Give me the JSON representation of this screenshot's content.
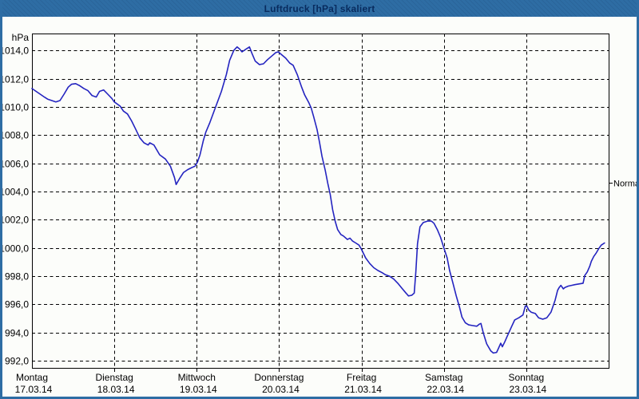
{
  "window": {
    "title": "Luftdruck [hPa] skaliert"
  },
  "colors": {
    "header_bg": "#2e6da4",
    "title_text": "#082b5e",
    "window_bg": "#fcfdfa",
    "grid": "#000000",
    "line": "#2424c0"
  },
  "chart_data": {
    "type": "line",
    "title": "Luftdruck [hPa] skaliert",
    "ylabel": "hPa",
    "xlabel": "",
    "grid": "dashed",
    "legend_position": "none",
    "y_min": 991.5,
    "y_max": 1015.2,
    "x_range_days": [
      0,
      7
    ],
    "y_ticks": [
      {
        "v": 1014,
        "label": "1014,0"
      },
      {
        "v": 1012,
        "label": "1012,0"
      },
      {
        "v": 1010,
        "label": "1010,0"
      },
      {
        "v": 1008,
        "label": "1008,0"
      },
      {
        "v": 1006,
        "label": "1006,0"
      },
      {
        "v": 1004,
        "label": "1004,0"
      },
      {
        "v": 1002,
        "label": "1002,0"
      },
      {
        "v": 1000,
        "label": "1000,0"
      },
      {
        "v": 998,
        "label": "998,0"
      },
      {
        "v": 996,
        "label": "996,0"
      },
      {
        "v": 994,
        "label": "994,0"
      },
      {
        "v": 992,
        "label": "992,0"
      }
    ],
    "x_days": [
      {
        "name": "Montag",
        "date": "17.03.14"
      },
      {
        "name": "Dienstag",
        "date": "18.03.14"
      },
      {
        "name": "Mittwoch",
        "date": "19.03.14"
      },
      {
        "name": "Donnerstag",
        "date": "20.03.14"
      },
      {
        "name": "Freitag",
        "date": "21.03.14"
      },
      {
        "name": "Samstag",
        "date": "22.03.14"
      },
      {
        "name": "Sonntag",
        "date": "23.03.14"
      }
    ],
    "normal_marker": {
      "label": "Normal",
      "value": 1004.6
    },
    "series": [
      {
        "name": "Luftdruck",
        "points": [
          [
            0.0,
            1011.3
          ],
          [
            0.05,
            1011.1
          ],
          [
            0.1,
            1010.9
          ],
          [
            0.15,
            1010.7
          ],
          [
            0.19,
            1010.55
          ],
          [
            0.24,
            1010.45
          ],
          [
            0.29,
            1010.35
          ],
          [
            0.34,
            1010.45
          ],
          [
            0.39,
            1010.9
          ],
          [
            0.44,
            1011.4
          ],
          [
            0.48,
            1011.6
          ],
          [
            0.53,
            1011.65
          ],
          [
            0.58,
            1011.5
          ],
          [
            0.63,
            1011.3
          ],
          [
            0.68,
            1011.15
          ],
          [
            0.73,
            1010.8
          ],
          [
            0.78,
            1010.7
          ],
          [
            0.82,
            1011.1
          ],
          [
            0.87,
            1011.2
          ],
          [
            0.92,
            1010.9
          ],
          [
            0.97,
            1010.6
          ],
          [
            1.0,
            1010.35
          ],
          [
            1.07,
            1010.05
          ],
          [
            1.11,
            1009.7
          ],
          [
            1.16,
            1009.5
          ],
          [
            1.21,
            1009.0
          ],
          [
            1.26,
            1008.4
          ],
          [
            1.31,
            1007.8
          ],
          [
            1.36,
            1007.45
          ],
          [
            1.41,
            1007.3
          ],
          [
            1.43,
            1007.45
          ],
          [
            1.48,
            1007.3
          ],
          [
            1.55,
            1006.6
          ],
          [
            1.62,
            1006.3
          ],
          [
            1.68,
            1005.8
          ],
          [
            1.73,
            1005.0
          ],
          [
            1.75,
            1004.5
          ],
          [
            1.79,
            1004.9
          ],
          [
            1.84,
            1005.35
          ],
          [
            1.89,
            1005.55
          ],
          [
            1.94,
            1005.7
          ],
          [
            1.98,
            1005.8
          ],
          [
            2.01,
            1006.1
          ],
          [
            2.04,
            1006.6
          ],
          [
            2.08,
            1007.6
          ],
          [
            2.11,
            1008.2
          ],
          [
            2.16,
            1008.9
          ],
          [
            2.23,
            1010.0
          ],
          [
            2.3,
            1011.1
          ],
          [
            2.36,
            1012.3
          ],
          [
            2.4,
            1013.3
          ],
          [
            2.45,
            1014.0
          ],
          [
            2.49,
            1014.25
          ],
          [
            2.52,
            1014.1
          ],
          [
            2.55,
            1013.9
          ],
          [
            2.6,
            1014.1
          ],
          [
            2.64,
            1014.25
          ],
          [
            2.67,
            1013.8
          ],
          [
            2.71,
            1013.25
          ],
          [
            2.76,
            1013.0
          ],
          [
            2.81,
            1013.05
          ],
          [
            2.86,
            1013.35
          ],
          [
            2.91,
            1013.6
          ],
          [
            2.96,
            1013.85
          ],
          [
            2.99,
            1013.9
          ],
          [
            3.03,
            1013.7
          ],
          [
            3.08,
            1013.45
          ],
          [
            3.13,
            1013.1
          ],
          [
            3.17,
            1012.95
          ],
          [
            3.22,
            1012.3
          ],
          [
            3.27,
            1011.45
          ],
          [
            3.31,
            1010.85
          ],
          [
            3.36,
            1010.3
          ],
          [
            3.39,
            1009.9
          ],
          [
            3.42,
            1009.3
          ],
          [
            3.46,
            1008.4
          ],
          [
            3.49,
            1007.5
          ],
          [
            3.52,
            1006.5
          ],
          [
            3.56,
            1005.5
          ],
          [
            3.59,
            1004.6
          ],
          [
            3.62,
            1003.8
          ],
          [
            3.65,
            1002.7
          ],
          [
            3.68,
            1001.9
          ],
          [
            3.71,
            1001.3
          ],
          [
            3.75,
            1000.95
          ],
          [
            3.78,
            1000.85
          ],
          [
            3.83,
            1000.6
          ],
          [
            3.86,
            1000.7
          ],
          [
            3.89,
            1000.5
          ],
          [
            3.93,
            1000.35
          ],
          [
            3.97,
            1000.2
          ],
          [
            4.0,
            999.9
          ],
          [
            4.05,
            999.3
          ],
          [
            4.1,
            998.9
          ],
          [
            4.15,
            998.6
          ],
          [
            4.2,
            998.4
          ],
          [
            4.25,
            998.25
          ],
          [
            4.29,
            998.1
          ],
          [
            4.34,
            998.0
          ],
          [
            4.39,
            997.8
          ],
          [
            4.44,
            997.5
          ],
          [
            4.49,
            997.15
          ],
          [
            4.54,
            996.8
          ],
          [
            4.57,
            996.6
          ],
          [
            4.61,
            996.65
          ],
          [
            4.64,
            996.8
          ],
          [
            4.66,
            998.3
          ],
          [
            4.68,
            1000.3
          ],
          [
            4.71,
            1001.5
          ],
          [
            4.75,
            1001.8
          ],
          [
            4.8,
            1001.9
          ],
          [
            4.85,
            1001.9
          ],
          [
            4.88,
            1001.75
          ],
          [
            4.92,
            1001.3
          ],
          [
            4.96,
            1000.75
          ],
          [
            5.0,
            1000.0
          ],
          [
            5.04,
            999.3
          ],
          [
            5.07,
            998.4
          ],
          [
            5.11,
            997.5
          ],
          [
            5.15,
            996.6
          ],
          [
            5.19,
            995.8
          ],
          [
            5.22,
            995.1
          ],
          [
            5.26,
            994.7
          ],
          [
            5.3,
            994.55
          ],
          [
            5.35,
            994.5
          ],
          [
            5.4,
            994.45
          ],
          [
            5.43,
            994.6
          ],
          [
            5.45,
            994.65
          ],
          [
            5.48,
            993.95
          ],
          [
            5.52,
            993.2
          ],
          [
            5.57,
            992.7
          ],
          [
            5.6,
            992.55
          ],
          [
            5.64,
            992.6
          ],
          [
            5.66,
            992.85
          ],
          [
            5.69,
            993.25
          ],
          [
            5.71,
            993.0
          ],
          [
            5.74,
            993.35
          ],
          [
            5.77,
            993.75
          ],
          [
            5.82,
            994.4
          ],
          [
            5.86,
            994.9
          ],
          [
            5.91,
            995.05
          ],
          [
            5.96,
            995.25
          ],
          [
            5.99,
            995.9
          ],
          [
            6.01,
            995.85
          ],
          [
            6.03,
            995.6
          ],
          [
            6.06,
            995.45
          ],
          [
            6.11,
            995.35
          ],
          [
            6.15,
            995.05
          ],
          [
            6.2,
            994.95
          ],
          [
            6.25,
            995.05
          ],
          [
            6.3,
            995.45
          ],
          [
            6.35,
            996.3
          ],
          [
            6.38,
            997.0
          ],
          [
            6.4,
            997.2
          ],
          [
            6.42,
            997.35
          ],
          [
            6.45,
            997.1
          ],
          [
            6.47,
            997.2
          ],
          [
            6.51,
            997.3
          ],
          [
            6.55,
            997.35
          ],
          [
            6.59,
            997.4
          ],
          [
            6.64,
            997.45
          ],
          [
            6.69,
            997.5
          ],
          [
            6.71,
            998.05
          ],
          [
            6.74,
            998.3
          ],
          [
            6.77,
            998.7
          ],
          [
            6.79,
            999.05
          ],
          [
            6.82,
            999.4
          ],
          [
            6.85,
            999.65
          ],
          [
            6.88,
            999.95
          ],
          [
            6.91,
            1000.2
          ],
          [
            6.95,
            1000.35
          ]
        ]
      }
    ]
  }
}
